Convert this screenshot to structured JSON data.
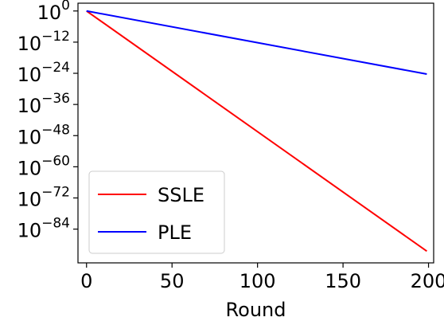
{
  "chart_data": {
    "type": "line",
    "title": "",
    "xlabel": "Round",
    "ylabel": "",
    "xscale": "linear",
    "yscale": "log10",
    "xlim": [
      -5,
      203
    ],
    "ylim_exponent": [
      -97,
      3
    ],
    "grid": false,
    "legend_position": "lower-left",
    "x_ticks": [
      0,
      50,
      100,
      150,
      200
    ],
    "x_tick_labels": [
      "0",
      "50",
      "100",
      "150",
      "200"
    ],
    "y_tick_exponents": [
      0,
      -12,
      -24,
      -36,
      -48,
      -60,
      -72,
      -84
    ],
    "y_tick_base": "10",
    "y_tick_labels": [
      "0",
      "−12",
      "−24",
      "−36",
      "−48",
      "−60",
      "−72",
      "−84"
    ],
    "series": [
      {
        "name": "SSLE",
        "color": "#ff0000",
        "x": [
          0,
          199
        ],
        "y_log10": [
          0,
          -92.5
        ]
      },
      {
        "name": "PLE",
        "color": "#0000ff",
        "x": [
          0,
          199
        ],
        "y_log10": [
          0,
          -24.3
        ]
      }
    ]
  }
}
